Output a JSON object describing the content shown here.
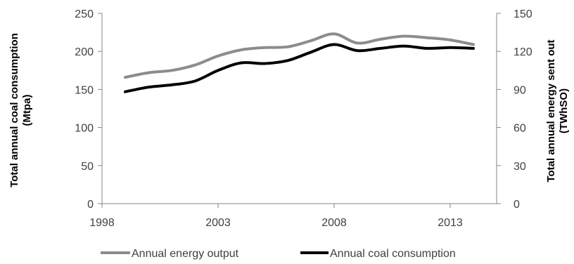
{
  "chart_data": {
    "type": "line",
    "title": "",
    "xlabel": "",
    "ylabel_left": "Total annual coal consumption (Mtpa)",
    "ylabel_left_lines": [
      "Total annual coal consumption",
      "(Mtpa)"
    ],
    "ylabel_right": "Total annual energy sent out (TWhSO)",
    "ylabel_right_lines": [
      "Total annual energy sent out",
      "(TWhSO)"
    ],
    "xlim": [
      1998,
      2015
    ],
    "ylim_left": [
      0,
      250
    ],
    "ylim_right": [
      0,
      150
    ],
    "x_ticks": [
      "1998",
      "2003",
      "2008",
      "2013"
    ],
    "y_left_ticks": [
      "0",
      "50",
      "100",
      "150",
      "200",
      "250"
    ],
    "y_right_ticks": [
      "0",
      "30",
      "60",
      "90",
      "120",
      "150"
    ],
    "grid": false,
    "legend_position": "bottom",
    "series": [
      {
        "name": "Annual energy output",
        "axis": "left",
        "color": "#8c8c8c",
        "x": [
          1999,
          2000,
          2001,
          2002,
          2003,
          2004,
          2005,
          2006,
          2007,
          2008,
          2009,
          2010,
          2011,
          2012,
          2013,
          2014
        ],
        "values": [
          166,
          172,
          175,
          182,
          194,
          202,
          205,
          206,
          214,
          223,
          211,
          216,
          220,
          218,
          215,
          209
        ]
      },
      {
        "name": "Annual coal consumption",
        "axis": "left",
        "color": "#000000",
        "x": [
          1999,
          2000,
          2001,
          2002,
          2003,
          2004,
          2005,
          2006,
          2007,
          2008,
          2009,
          2010,
          2011,
          2012,
          2013,
          2014
        ],
        "values": [
          147,
          153,
          156,
          161,
          175,
          185,
          184,
          188,
          199,
          209,
          201,
          204,
          207,
          204,
          205,
          204
        ]
      }
    ]
  }
}
